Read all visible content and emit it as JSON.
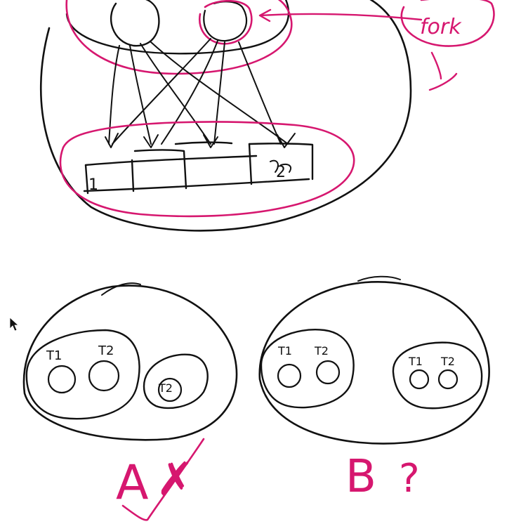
{
  "colors": {
    "ink_black": "#111111",
    "ink_magenta": "#d6176f",
    "background": "#ffffff"
  },
  "top_diagram": {
    "fork_label": "fork",
    "cells": [
      "1",
      "",
      "",
      "2"
    ]
  },
  "bottom_diagram": {
    "option_a": {
      "label": "A",
      "mark": "✗",
      "inner_group_labels": [
        "T1",
        "T2"
      ],
      "outer_group_label": "T2"
    },
    "option_b": {
      "label": "B",
      "mark": "?",
      "left_group_labels": [
        "T1",
        "T2"
      ],
      "right_group_labels": [
        "T1",
        "T2"
      ]
    }
  },
  "cursor": "arrow-cursor-icon"
}
